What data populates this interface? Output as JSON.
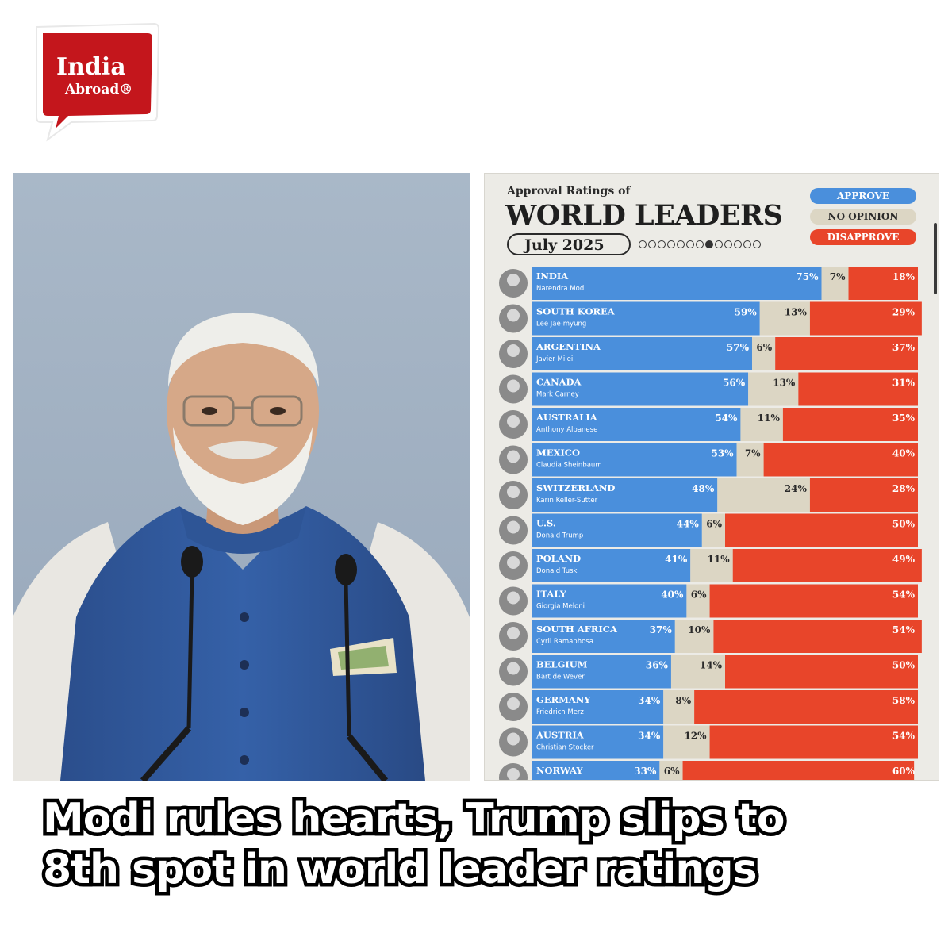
{
  "brand": {
    "line1": "India",
    "line2": "Abroad®",
    "color": "#c4161c"
  },
  "headline": {
    "line1": "Modi rules hearts, Trump slips to",
    "line2": "8th spot in world leader ratings"
  },
  "photo": {
    "icon": "portrait-photo"
  },
  "chart_data": {
    "type": "bar",
    "stacked": true,
    "orientation": "horizontal",
    "subtitle": "Approval Ratings of",
    "title": "WORLD LEADERS",
    "date": "July 2025",
    "legend_position": "top-right",
    "legend": [
      "APPROVE",
      "NO OPINION",
      "DISAPPROVE"
    ],
    "colors": {
      "approve": "#4a8fdc",
      "no_opinion": "#dcd6c4",
      "disapprove": "#e8452a"
    },
    "categories": [
      "INDIA",
      "SOUTH KOREA",
      "ARGENTINA",
      "CANADA",
      "AUSTRALIA",
      "MEXICO",
      "SWITZERLAND",
      "U.S.",
      "POLAND",
      "ITALY",
      "SOUTH AFRICA",
      "BELGIUM",
      "GERMANY",
      "AUSTRIA",
      "NORWAY"
    ],
    "leaders": [
      "Narendra Modi",
      "Lee Jae-myung",
      "Javier Milei",
      "Mark Carney",
      "Anthony Albanese",
      "Claudia Sheinbaum",
      "Karin Keller-Sutter",
      "Donald Trump",
      "Donald Tusk",
      "Giorgia Meloni",
      "Cyril Ramaphosa",
      "Bart de Wever",
      "Friedrich Merz",
      "Christian Stocker",
      ""
    ],
    "series": [
      {
        "name": "APPROVE",
        "values": [
          75,
          59,
          57,
          56,
          54,
          53,
          48,
          44,
          41,
          40,
          37,
          36,
          34,
          34,
          33
        ]
      },
      {
        "name": "NO OPINION",
        "values": [
          7,
          13,
          6,
          13,
          11,
          7,
          24,
          6,
          11,
          6,
          10,
          14,
          8,
          12,
          6
        ]
      },
      {
        "name": "DISAPPROVE",
        "values": [
          18,
          29,
          37,
          31,
          35,
          40,
          28,
          50,
          49,
          54,
          54,
          50,
          58,
          54,
          60
        ]
      }
    ],
    "xlim": [
      0,
      100
    ],
    "page_dots": 13,
    "active_dot": 7
  }
}
